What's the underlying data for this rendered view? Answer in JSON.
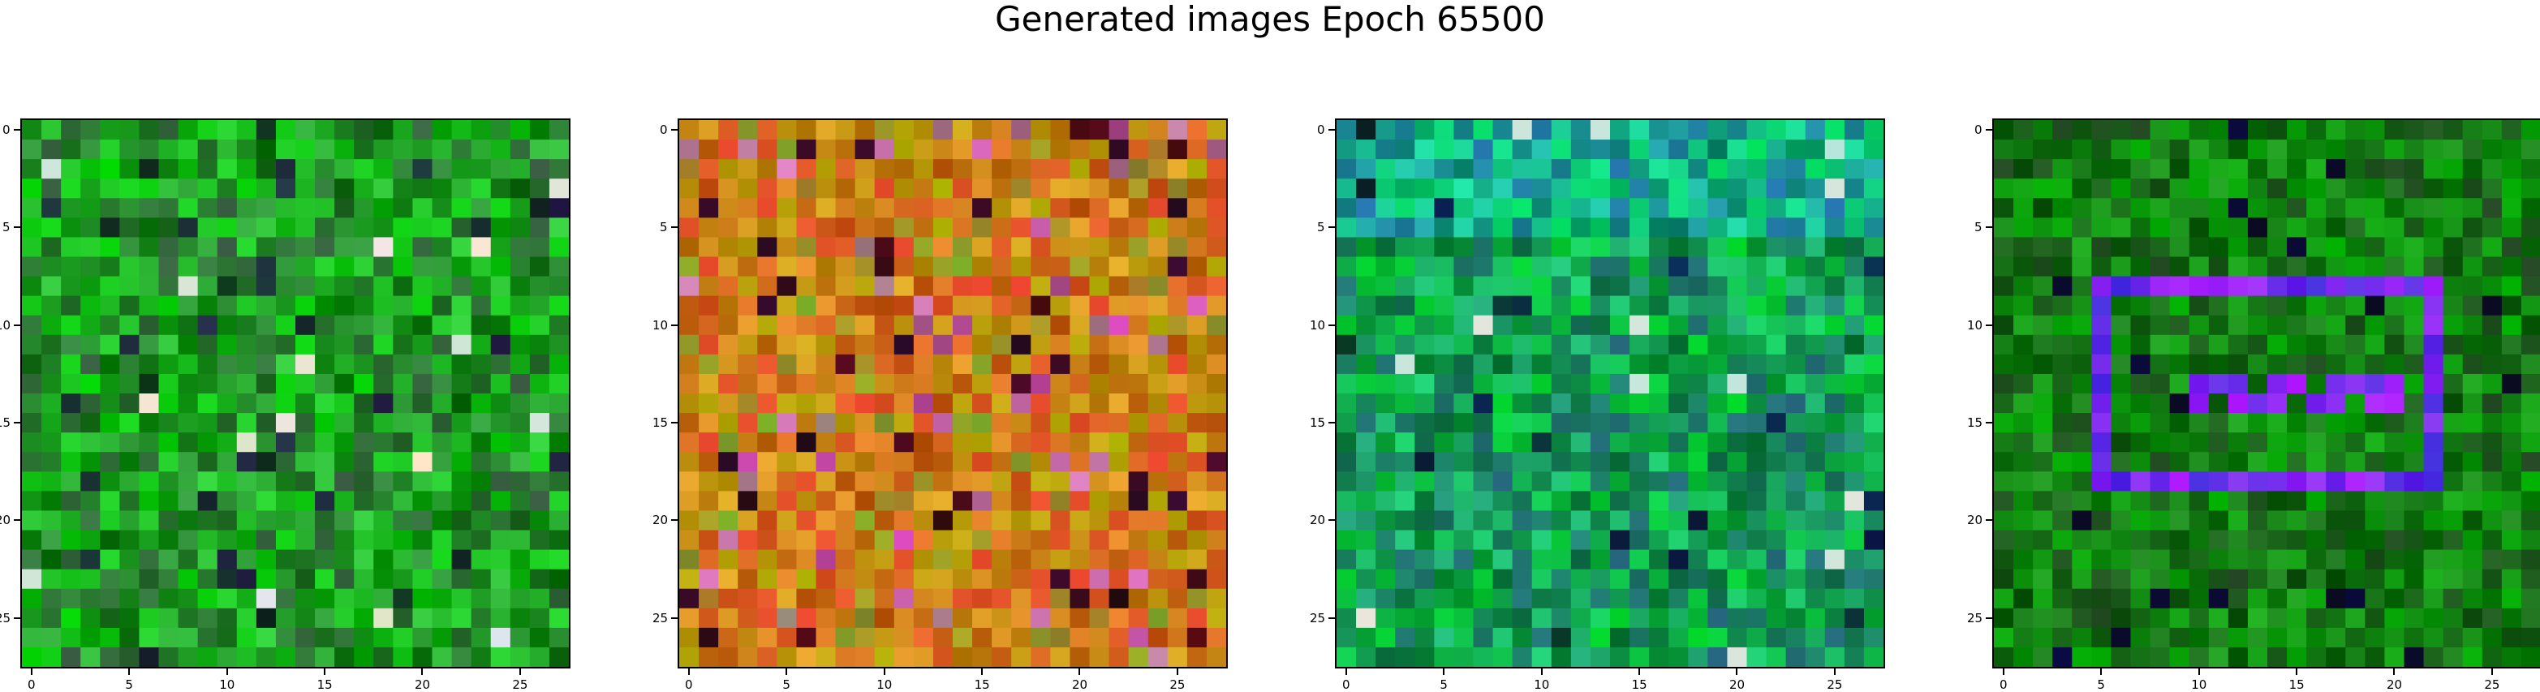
{
  "title": "Generated images Epoch 65500",
  "chart_data": [
    {
      "type": "heatmap",
      "title": "",
      "grid": false,
      "size": 28,
      "palette": "green",
      "seed": 11,
      "xlim": [
        -0.5,
        27.5
      ],
      "ylim": [
        27.5,
        -0.5
      ],
      "xticks": [
        0,
        5,
        10,
        15,
        20,
        25
      ],
      "yticks": [
        0,
        5,
        10,
        15,
        20,
        25
      ]
    },
    {
      "type": "heatmap",
      "title": "",
      "grid": false,
      "size": 28,
      "palette": "warm",
      "seed": 23,
      "xlim": [
        -0.5,
        27.5
      ],
      "ylim": [
        27.5,
        -0.5
      ],
      "xticks": [
        0,
        5,
        10,
        15,
        20,
        25
      ],
      "yticks": [
        0,
        5,
        10,
        15,
        20,
        25
      ]
    },
    {
      "type": "heatmap",
      "title": "",
      "grid": false,
      "size": 28,
      "palette": "teal",
      "seed": 37,
      "xlim": [
        -0.5,
        27.5
      ],
      "ylim": [
        27.5,
        -0.5
      ],
      "xticks": [
        0,
        5,
        10,
        15,
        20,
        25
      ],
      "yticks": [
        0,
        5,
        10,
        15,
        20,
        25
      ]
    },
    {
      "type": "heatmap",
      "title": "",
      "grid": false,
      "size": 28,
      "palette": "green-blue",
      "seed": 53,
      "xlim": [
        -0.5,
        27.5
      ],
      "ylim": [
        27.5,
        -0.5
      ],
      "xticks": [
        0,
        5,
        10,
        15,
        20,
        25
      ],
      "yticks": [
        0,
        5,
        10,
        15,
        20,
        25
      ]
    }
  ]
}
